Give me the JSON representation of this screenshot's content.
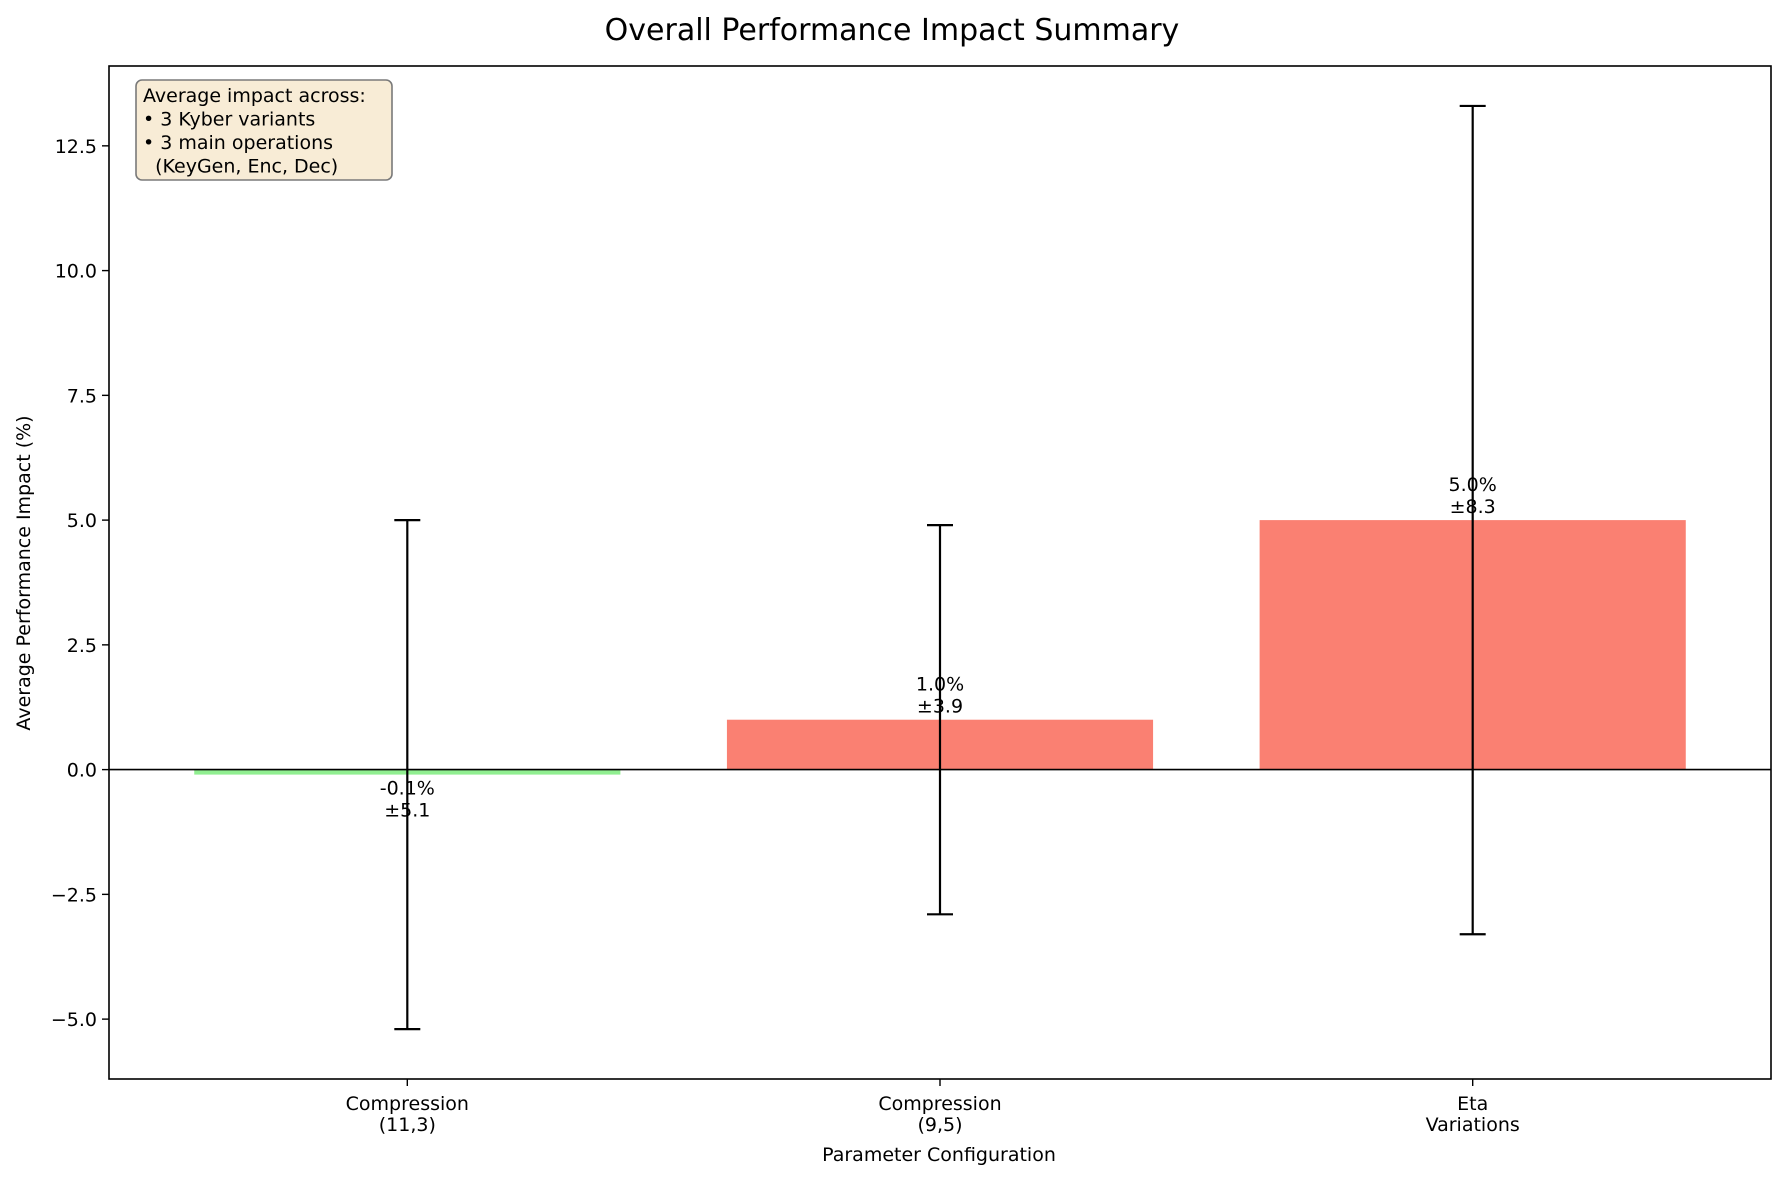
{
  "chart_data": {
    "type": "bar",
    "title": "Overall Performance Impact Summary",
    "xlabel": "Parameter Configuration",
    "ylabel": "Average Performance Impact (%)",
    "categories": [
      [
        "Compression",
        "(11,3)"
      ],
      [
        "Compression",
        "(9,5)"
      ],
      [
        "Eta",
        "Variations"
      ]
    ],
    "values": [
      -0.1,
      1.0,
      5.0
    ],
    "errors": [
      5.1,
      3.9,
      8.3
    ],
    "value_labels": [
      "-0.1%",
      "1.0%",
      "5.0%"
    ],
    "error_labels": [
      "±5.1",
      "±3.9",
      "±8.3"
    ],
    "colors": [
      "#90ee90",
      "#fa8072",
      "#fa8072"
    ],
    "ylim": [
      -6.2,
      14.1
    ],
    "yticks": [
      -5.0,
      -2.5,
      0.0,
      2.5,
      5.0,
      7.5,
      10.0,
      12.5
    ],
    "ytick_labels": [
      "−5.0",
      "−2.5",
      "0.0",
      "2.5",
      "5.0",
      "7.5",
      "10.0",
      "12.5"
    ],
    "grid": false,
    "zero_line": true,
    "annotation": {
      "lines": [
        "Average impact across:",
        "• 3 Kyber variants",
        "• 3 main operations",
        "  (KeyGen, Enc, Dec)"
      ],
      "placement": "top-left",
      "background": "#f8ecd6"
    }
  }
}
